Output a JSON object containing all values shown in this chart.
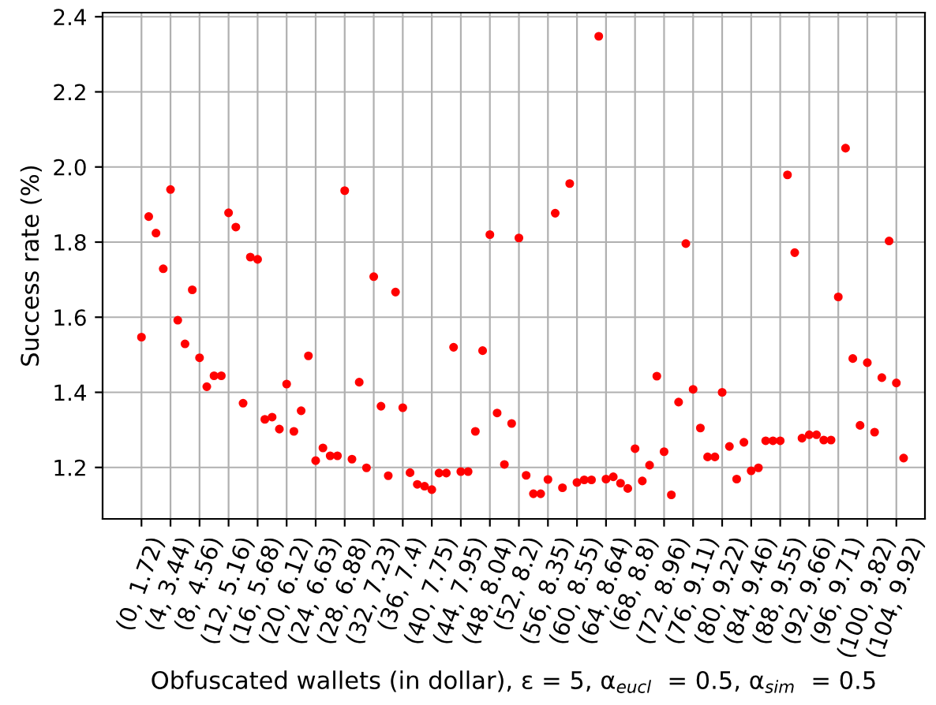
{
  "chart_data": {
    "type": "scatter",
    "xlabel": "Obfuscated wallets (in dollar), ε = 5, α$_{eucl}$  = 0.5, α$_{sim}$  = 0.5",
    "ylabel": "Success rate (%)",
    "categories": [
      "(0, 1.72)",
      null,
      null,
      null,
      "(4, 3.44)",
      null,
      null,
      null,
      "(8, 4.56)",
      null,
      null,
      null,
      "(12, 5.16)",
      null,
      null,
      null,
      "(16, 5.68)",
      null,
      null,
      null,
      "(20, 6.12)",
      null,
      null,
      null,
      "(24, 6.63)",
      null,
      null,
      null,
      "(28, 6.88)",
      null,
      null,
      null,
      "(32, 7.23)",
      null,
      null,
      null,
      "(36, 7.4)",
      null,
      null,
      null,
      "(40, 7.75)",
      null,
      null,
      null,
      "(44, 7.95)",
      null,
      null,
      null,
      "(48, 8.04)",
      null,
      null,
      null,
      "(52, 8.2)",
      null,
      null,
      null,
      "(56, 8.35)",
      null,
      null,
      null,
      "(60, 8.55)",
      null,
      null,
      null,
      "(64, 8.64)",
      null,
      null,
      null,
      "(68, 8.8)",
      null,
      null,
      null,
      "(72, 8.96)",
      null,
      null,
      null,
      "(76, 9.11)",
      null,
      null,
      null,
      "(80, 9.22)",
      null,
      null,
      null,
      "(84, 9.46)",
      null,
      null,
      null,
      "(88, 9.55)",
      null,
      null,
      null,
      "(92, 9.66)",
      null,
      null,
      null,
      "(96, 9.71)",
      null,
      null,
      null,
      "(100, 9.82)",
      null,
      null,
      null,
      "(104, 9.92)",
      null
    ],
    "series": [
      {
        "color": "#ff0000",
        "values": [
          1.547,
          1.868,
          1.824,
          1.729,
          1.94,
          1.592,
          1.529,
          1.673,
          1.492,
          1.415,
          1.444,
          1.444,
          1.878,
          1.84,
          1.371,
          1.76,
          1.754,
          1.328,
          1.334,
          1.302,
          1.422,
          1.296,
          1.351,
          1.497,
          1.218,
          1.252,
          1.231,
          1.231,
          1.937,
          1.222,
          1.427,
          1.199,
          1.708,
          1.363,
          1.178,
          1.667,
          1.359,
          1.186,
          1.155,
          1.15,
          1.141,
          1.185,
          1.185,
          1.52,
          1.189,
          1.189,
          1.296,
          1.511,
          1.82,
          1.345,
          1.208,
          1.317,
          1.811,
          1.179,
          1.13,
          1.13,
          1.168,
          1.877,
          1.146,
          1.956,
          1.16,
          1.167,
          1.167,
          2.348,
          1.169,
          1.175,
          1.158,
          1.144,
          1.25,
          1.164,
          1.206,
          1.443,
          1.242,
          1.127,
          1.374,
          1.796,
          1.408,
          1.305,
          1.228,
          1.228,
          1.4,
          1.256,
          1.169,
          1.267,
          1.191,
          1.199,
          1.271,
          1.271,
          1.271,
          1.979,
          1.772,
          1.278,
          1.287,
          1.287,
          1.273,
          1.273,
          1.654,
          2.05,
          1.49,
          1.312,
          1.479,
          1.294,
          1.439,
          1.803,
          1.425,
          1.225
        ]
      }
    ],
    "ylim": [
      1.063,
      2.411
    ],
    "yticks": [
      {
        "value": 1.2,
        "label": "1.2"
      },
      {
        "value": 1.4,
        "label": "1.4"
      },
      {
        "value": 1.6,
        "label": "1.6"
      },
      {
        "value": 1.8,
        "label": "1.8"
      },
      {
        "value": 2.0,
        "label": "2.0"
      },
      {
        "value": 2.2,
        "label": "2.2"
      },
      {
        "value": 2.4,
        "label": "2.4"
      }
    ],
    "grid": true,
    "marker": "circle"
  }
}
